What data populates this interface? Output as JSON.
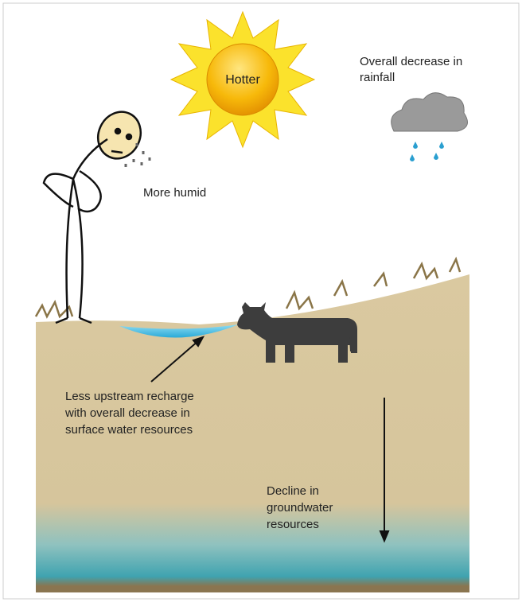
{
  "sun": {
    "label": "Hotter"
  },
  "cloud": {
    "label": [
      "Overall decrease in",
      "rainfall"
    ]
  },
  "person": {
    "label": "More humid"
  },
  "surface": {
    "label": [
      "Less upstream recharge",
      "with overall decrease in",
      "surface water resources"
    ]
  },
  "groundwater": {
    "label": [
      "Decline in",
      "groundwater",
      "resources"
    ]
  }
}
